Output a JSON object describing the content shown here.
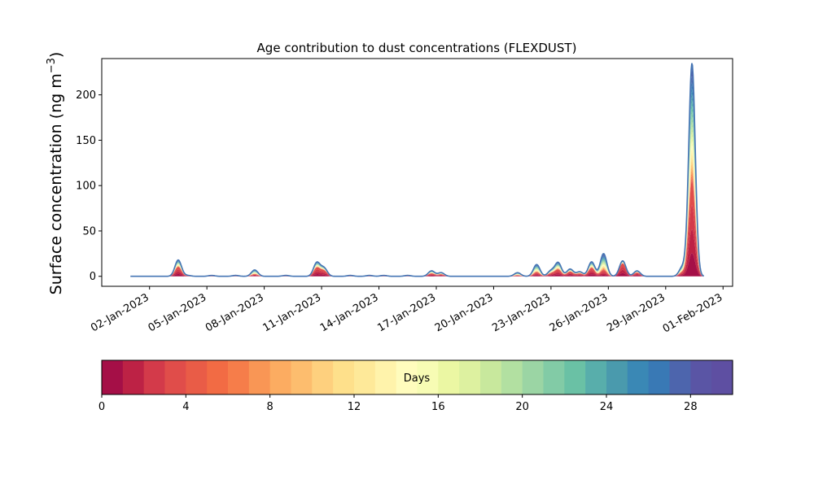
{
  "chart_data": {
    "type": "area",
    "title": "Age contribution to dust concentrations (FLEXDUST)",
    "ylabel_main": "Surface concentration (ng m",
    "ylabel_exp": "−3",
    "ylabel_close": ")",
    "xlabel": "",
    "ylim": [
      -11,
      240
    ],
    "yticks": [
      0,
      50,
      100,
      150,
      200
    ],
    "x_start": "01-Jan-2023",
    "x_end": "31-Jan-2023",
    "xticks": [
      "02-Jan-2023",
      "05-Jan-2023",
      "08-Jan-2023",
      "11-Jan-2023",
      "14-Jan-2023",
      "17-Jan-2023",
      "20-Jan-2023",
      "23-Jan-2023",
      "26-Jan-2023",
      "29-Jan-2023",
      "01-Feb-2023"
    ],
    "grid": false,
    "total_series_color": "#4575b4",
    "peaks": [
      {
        "date": "03-Jan-2023 12:00",
        "total": 18,
        "young": 10
      },
      {
        "date": "04-Jan-2023 00:00",
        "total": 1,
        "young": 0.5
      },
      {
        "date": "05-Jan-2023 06:00",
        "total": 1,
        "young": 0.5
      },
      {
        "date": "06-Jan-2023 12:00",
        "total": 1,
        "young": 0.5
      },
      {
        "date": "07-Jan-2023 12:00",
        "total": 7,
        "young": 2
      },
      {
        "date": "09-Jan-2023 03:00",
        "total": 1,
        "young": 0.5
      },
      {
        "date": "10-Jan-2023 18:00",
        "total": 15,
        "young": 9
      },
      {
        "date": "11-Jan-2023 03:00",
        "total": 9,
        "young": 6
      },
      {
        "date": "12-Jan-2023 12:00",
        "total": 1,
        "young": 0.5
      },
      {
        "date": "13-Jan-2023 12:00",
        "total": 1,
        "young": 0.5
      },
      {
        "date": "14-Jan-2023 06:00",
        "total": 1,
        "young": 0.5
      },
      {
        "date": "15-Jan-2023 12:00",
        "total": 1,
        "young": 0.5
      },
      {
        "date": "16-Jan-2023 18:00",
        "total": 6,
        "young": 3
      },
      {
        "date": "17-Jan-2023 06:00",
        "total": 4,
        "young": 2
      },
      {
        "date": "21-Jan-2023 06:00",
        "total": 4,
        "young": 1
      },
      {
        "date": "22-Jan-2023 06:00",
        "total": 13,
        "young": 4
      },
      {
        "date": "23-Jan-2023 00:00",
        "total": 6,
        "young": 3
      },
      {
        "date": "23-Jan-2023 09:00",
        "total": 15,
        "young": 7
      },
      {
        "date": "24-Jan-2023 00:00",
        "total": 8,
        "young": 5
      },
      {
        "date": "24-Jan-2023 12:00",
        "total": 5,
        "young": 3
      },
      {
        "date": "25-Jan-2023 03:00",
        "total": 16,
        "young": 9
      },
      {
        "date": "25-Jan-2023 18:00",
        "total": 25,
        "young": 6
      },
      {
        "date": "26-Jan-2023 18:00",
        "total": 17,
        "young": 14
      },
      {
        "date": "27-Jan-2023 12:00",
        "total": 6,
        "young": 4
      },
      {
        "date": "29-Jan-2023 21:00",
        "total": 10,
        "young": 4
      },
      {
        "date": "30-Jan-2023 09:00",
        "total": 235,
        "young": 100
      }
    ]
  },
  "colorbar": {
    "label": "Days",
    "min": 0,
    "max": 30,
    "ticks": [
      "0",
      "4",
      "8",
      "12",
      "16",
      "20",
      "24",
      "28"
    ],
    "colors": [
      "#a50f47",
      "#bd2245",
      "#d33a4a",
      "#e04d4a",
      "#e95c47",
      "#f26b44",
      "#f67d4a",
      "#f99655",
      "#fcac61",
      "#fdbd6e",
      "#fed07e",
      "#fee08b",
      "#fee999",
      "#fff3ab",
      "#fffcbd",
      "#f7fcb4",
      "#ebf7a3",
      "#ddf1a0",
      "#c8e89d",
      "#b2e0a1",
      "#9bd5a4",
      "#82cba6",
      "#6ac1a5",
      "#58aeab",
      "#4a9aad",
      "#3a88b5",
      "#3979b5",
      "#4d65ad",
      "#5a55a5",
      "#5e4fa2"
    ]
  }
}
